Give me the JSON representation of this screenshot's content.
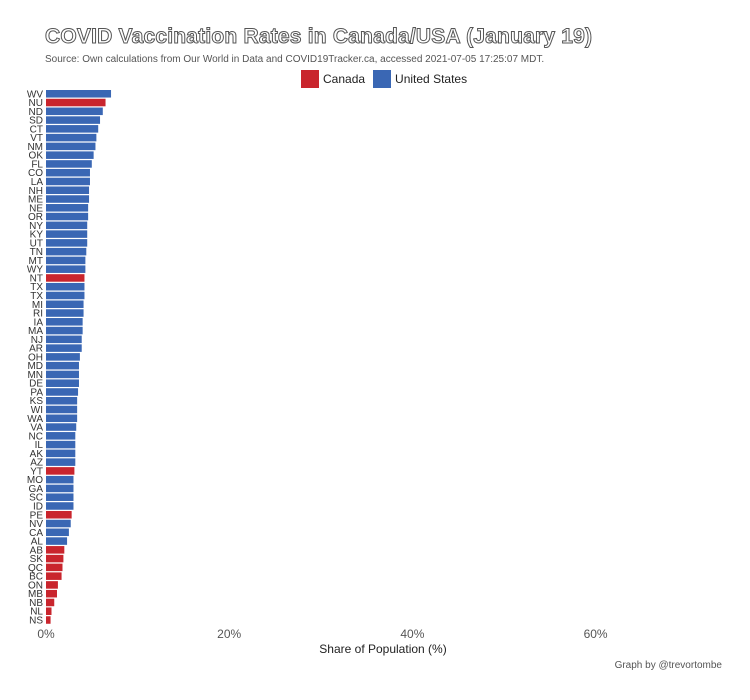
{
  "chart_data": {
    "type": "bar",
    "orientation": "horizontal",
    "title": "COVID Vaccination Rates in Canada/USA (January 19)",
    "subtitle": "Source: Own calculations from Our World in Data and COVID19Tracker.ca, accessed 2021-07-05 17:25:07 MDT.",
    "xlabel": "Share of Population (%)",
    "ylabel": "",
    "xlim": [
      0,
      75
    ],
    "xticks": [
      0,
      20,
      40,
      60
    ],
    "xtick_labels": [
      "0%",
      "20%",
      "40%",
      "60%"
    ],
    "grid": false,
    "legend_position": "top",
    "series": [
      {
        "name": "Canada",
        "color": "#c9252d"
      },
      {
        "name": "United States",
        "color": "#3a67b4"
      }
    ],
    "bars": [
      {
        "label": "WV",
        "country": "United States",
        "value": 7.1
      },
      {
        "label": "NU",
        "country": "Canada",
        "value": 6.5
      },
      {
        "label": "ND",
        "country": "United States",
        "value": 6.2
      },
      {
        "label": "SD",
        "country": "United States",
        "value": 5.9
      },
      {
        "label": "CT",
        "country": "United States",
        "value": 5.7
      },
      {
        "label": "VT",
        "country": "United States",
        "value": 5.5
      },
      {
        "label": "NM",
        "country": "United States",
        "value": 5.4
      },
      {
        "label": "OK",
        "country": "United States",
        "value": 5.2
      },
      {
        "label": "FL",
        "country": "United States",
        "value": 5.0
      },
      {
        "label": "CO",
        "country": "United States",
        "value": 4.8
      },
      {
        "label": "LA",
        "country": "United States",
        "value": 4.8
      },
      {
        "label": "NH",
        "country": "United States",
        "value": 4.7
      },
      {
        "label": "ME",
        "country": "United States",
        "value": 4.7
      },
      {
        "label": "NE",
        "country": "United States",
        "value": 4.6
      },
      {
        "label": "OR",
        "country": "United States",
        "value": 4.6
      },
      {
        "label": "NY",
        "country": "United States",
        "value": 4.5
      },
      {
        "label": "KY",
        "country": "United States",
        "value": 4.5
      },
      {
        "label": "UT",
        "country": "United States",
        "value": 4.5
      },
      {
        "label": "TN",
        "country": "United States",
        "value": 4.4
      },
      {
        "label": "MT",
        "country": "United States",
        "value": 4.3
      },
      {
        "label": "WY",
        "country": "United States",
        "value": 4.3
      },
      {
        "label": "NT",
        "country": "Canada",
        "value": 4.2
      },
      {
        "label": "TX",
        "country": "United States",
        "value": 4.2
      },
      {
        "label": "TX",
        "country": "United States",
        "value": 4.2
      },
      {
        "label": "MI",
        "country": "United States",
        "value": 4.1
      },
      {
        "label": "RI",
        "country": "United States",
        "value": 4.1
      },
      {
        "label": "IA",
        "country": "United States",
        "value": 4.0
      },
      {
        "label": "MA",
        "country": "United States",
        "value": 4.0
      },
      {
        "label": "NJ",
        "country": "United States",
        "value": 3.9
      },
      {
        "label": "AR",
        "country": "United States",
        "value": 3.9
      },
      {
        "label": "OH",
        "country": "United States",
        "value": 3.7
      },
      {
        "label": "MD",
        "country": "United States",
        "value": 3.6
      },
      {
        "label": "MN",
        "country": "United States",
        "value": 3.6
      },
      {
        "label": "DE",
        "country": "United States",
        "value": 3.6
      },
      {
        "label": "PA",
        "country": "United States",
        "value": 3.5
      },
      {
        "label": "KS",
        "country": "United States",
        "value": 3.4
      },
      {
        "label": "WI",
        "country": "United States",
        "value": 3.4
      },
      {
        "label": "WA",
        "country": "United States",
        "value": 3.4
      },
      {
        "label": "VA",
        "country": "United States",
        "value": 3.3
      },
      {
        "label": "NC",
        "country": "United States",
        "value": 3.2
      },
      {
        "label": "IL",
        "country": "United States",
        "value": 3.2
      },
      {
        "label": "AK",
        "country": "United States",
        "value": 3.2
      },
      {
        "label": "AZ",
        "country": "United States",
        "value": 3.2
      },
      {
        "label": "YT",
        "country": "Canada",
        "value": 3.1
      },
      {
        "label": "MO",
        "country": "United States",
        "value": 3.0
      },
      {
        "label": "GA",
        "country": "United States",
        "value": 3.0
      },
      {
        "label": "SC",
        "country": "United States",
        "value": 3.0
      },
      {
        "label": "ID",
        "country": "United States",
        "value": 3.0
      },
      {
        "label": "PE",
        "country": "Canada",
        "value": 2.8
      },
      {
        "label": "NV",
        "country": "United States",
        "value": 2.7
      },
      {
        "label": "CA",
        "country": "United States",
        "value": 2.5
      },
      {
        "label": "AL",
        "country": "United States",
        "value": 2.3
      },
      {
        "label": "AB",
        "country": "Canada",
        "value": 2.0
      },
      {
        "label": "SK",
        "country": "Canada",
        "value": 1.9
      },
      {
        "label": "QC",
        "country": "Canada",
        "value": 1.8
      },
      {
        "label": "BC",
        "country": "Canada",
        "value": 1.7
      },
      {
        "label": "ON",
        "country": "Canada",
        "value": 1.3
      },
      {
        "label": "MB",
        "country": "Canada",
        "value": 1.2
      },
      {
        "label": "NB",
        "country": "Canada",
        "value": 0.9
      },
      {
        "label": "NL",
        "country": "Canada",
        "value": 0.6
      },
      {
        "label": "NS",
        "country": "Canada",
        "value": 0.5
      }
    ]
  },
  "caption": "Graph by @trevortombe"
}
